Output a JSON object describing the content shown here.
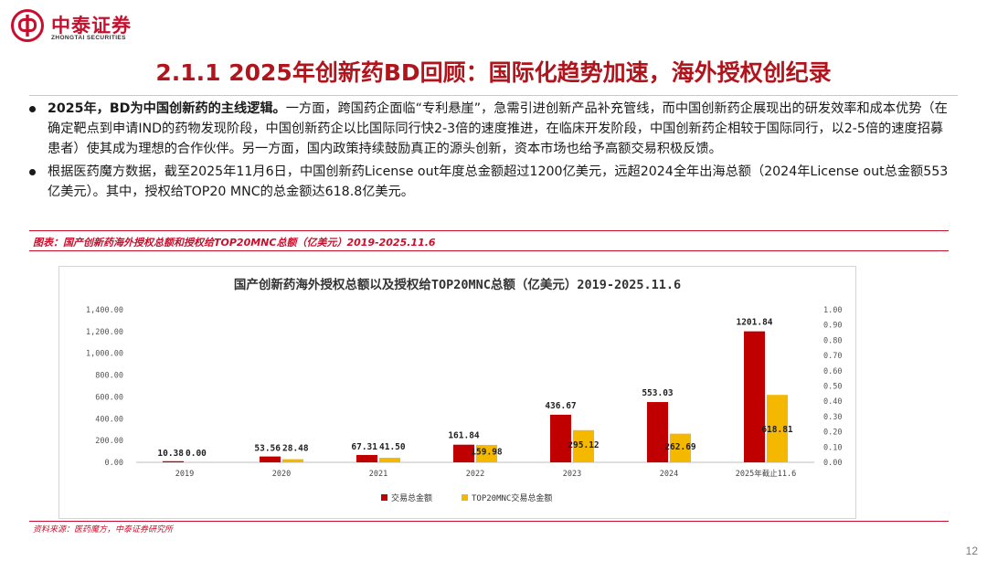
{
  "header": {
    "logo_cn": "中泰证券",
    "logo_en": "ZHONGTAI SECURITIES",
    "brand_color": "#c8102e"
  },
  "title": "2.1.1 2025年创新药BD回顾：国际化趋势加速，海外授权创纪录",
  "bullets": [
    {
      "bold": "2025年，BD为中国创新药的主线逻辑。",
      "text": "一方面，跨国药企面临“专利悬崖”，急需引进创新产品补充管线，而中国创新药企展现出的研发效率和成本优势（在确定靶点到申请IND的药物发现阶段，中国创新药企以比国际同行快2-3倍的速度推进，在临床开发阶段，中国创新药企相较于国际同行，以2-5倍的速度招募患者）使其成为理想的合作伙伴。另一方面，国内政策持续鼓励真正的源头创新，资本市场也给予高额交易积极反馈。"
    },
    {
      "bold": "",
      "text": "根据医药魔方数据，截至2025年11月6日，中国创新药License out年度总金额超过1200亿美元，远超2024全年出海总额（2024年License out总金额553亿美元）。其中，授权给TOP20 MNC的总金额达618.8亿美元。"
    }
  ],
  "figure_caption": "图表：国产创新药海外授权总额和授权给TOP20MNC总额（亿美元）2019-2025.11.6",
  "chart_data": {
    "type": "bar",
    "title": "国产创新药海外授权总额以及授权给TOP20MNC总额（亿美元）2019-2025.11.6",
    "categories": [
      "2019",
      "2020",
      "2021",
      "2022",
      "2023",
      "2024",
      "2025年截止11.6"
    ],
    "series": [
      {
        "name": "交易总金额",
        "color": "#c00000",
        "values": [
          10.38,
          53.56,
          67.31,
          161.84,
          436.67,
          553.03,
          1201.84
        ]
      },
      {
        "name": "TOP20MNC交易总金额",
        "color": "#f5b800",
        "values": [
          0.0,
          28.48,
          41.5,
          159.98,
          295.12,
          262.69,
          618.81
        ]
      }
    ],
    "data_labels": [
      [
        "10.38",
        "53.56",
        "67.31",
        "161.84",
        "436.67",
        "553.03",
        "1201.84"
      ],
      [
        "0.00",
        "28.48",
        "41.50",
        "159.98",
        "295.12",
        "262.69",
        "618.81"
      ]
    ],
    "ylim": [
      0,
      1400
    ],
    "yticks": [
      "0.00",
      "200.00",
      "400.00",
      "600.00",
      "800.00",
      "1,000.00",
      "1,200.00",
      "1,400.00"
    ],
    "y2lim": [
      0,
      1
    ],
    "y2ticks": [
      "0.00",
      "0.10",
      "0.20",
      "0.30",
      "0.40",
      "0.50",
      "0.60",
      "0.70",
      "0.80",
      "0.90",
      "1.00"
    ],
    "legend_position": "bottom"
  },
  "source": "资料来源：医药魔方，中泰证券研究所",
  "page_number": "12"
}
